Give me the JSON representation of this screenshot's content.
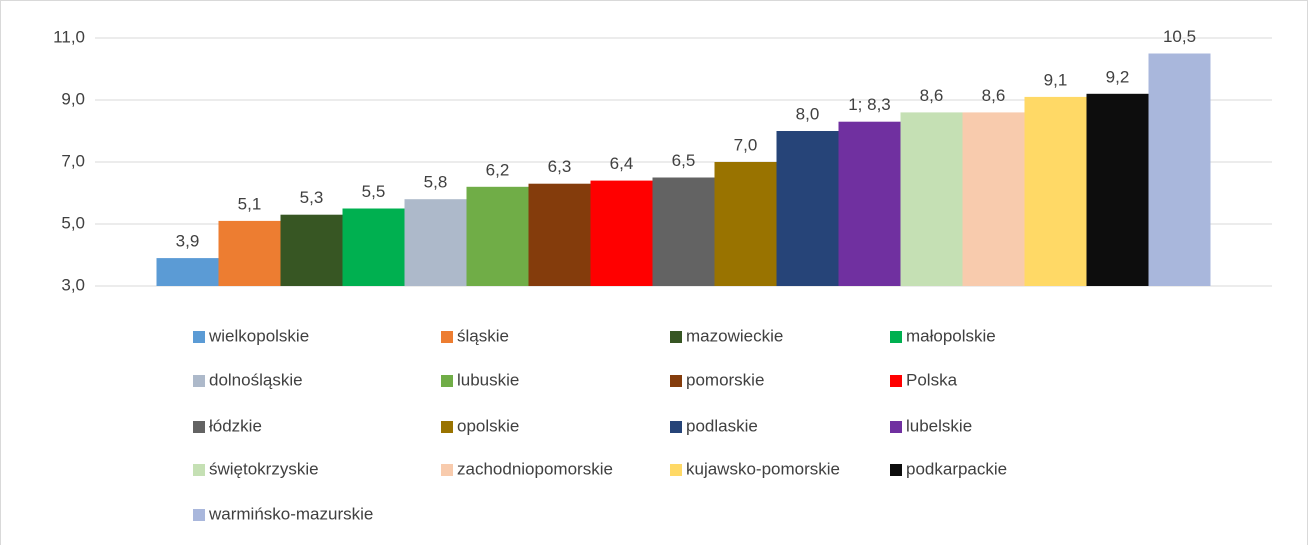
{
  "chart_data": {
    "type": "bar",
    "ylim": [
      3,
      11
    ],
    "yticks": [
      {
        "value": 3,
        "label": "3,0"
      },
      {
        "value": 5,
        "label": "5,0"
      },
      {
        "value": 7,
        "label": "7,0"
      },
      {
        "value": 9,
        "label": "9,0"
      },
      {
        "value": 11,
        "label": "11,0"
      }
    ],
    "grid": true,
    "legend": "bottom",
    "series": [
      {
        "name": "wielkopolskie",
        "color": "#5b9bd5",
        "values": [
          3.9
        ],
        "value_labels": [
          "3,9"
        ]
      },
      {
        "name": "śląskie",
        "color": "#ed7d31",
        "values": [
          5.1
        ],
        "value_labels": [
          "5,1"
        ]
      },
      {
        "name": "mazowieckie",
        "color": "#375623",
        "values": [
          5.3
        ],
        "value_labels": [
          "5,3"
        ]
      },
      {
        "name": "małopolskie",
        "color": "#00b050",
        "values": [
          5.5
        ],
        "value_labels": [
          "5,5"
        ]
      },
      {
        "name": "dolnośląskie",
        "color": "#adb9ca",
        "values": [
          5.8
        ],
        "value_labels": [
          "5,8"
        ]
      },
      {
        "name": "lubuskie",
        "color": "#70ad47",
        "values": [
          6.2
        ],
        "value_labels": [
          "6,2"
        ]
      },
      {
        "name": "pomorskie",
        "color": "#843c0c",
        "values": [
          6.3
        ],
        "value_labels": [
          "6,3"
        ]
      },
      {
        "name": "Polska",
        "color": "#ff0000",
        "values": [
          6.4
        ],
        "value_labels": [
          "6,4"
        ]
      },
      {
        "name": "łódzkie",
        "color": "#636363",
        "values": [
          6.5
        ],
        "value_labels": [
          "6,5"
        ]
      },
      {
        "name": "opolskie",
        "color": "#997300",
        "values": [
          7.0
        ],
        "value_labels": [
          "7,0"
        ]
      },
      {
        "name": "podlaskie",
        "color": "#264478",
        "values": [
          8.0
        ],
        "value_labels": [
          "8,0"
        ]
      },
      {
        "name": "lubelskie",
        "color": "#7030a0",
        "values": [
          8.3
        ],
        "value_labels": [
          "1; 8,3"
        ]
      },
      {
        "name": "świętokrzyskie",
        "color": "#c5e0b4",
        "values": [
          8.6
        ],
        "value_labels": [
          "8,6"
        ]
      },
      {
        "name": "zachodniopomorskie",
        "color": "#f8cbad",
        "values": [
          8.6
        ],
        "value_labels": [
          "8,6"
        ]
      },
      {
        "name": "kujawsko-pomorskie",
        "color": "#ffd966",
        "values": [
          9.1
        ],
        "value_labels": [
          "9,1"
        ]
      },
      {
        "name": "podkarpackie",
        "color": "#0d0d0d",
        "values": [
          9.2
        ],
        "value_labels": [
          "9,2"
        ]
      },
      {
        "name": "warmińsko-mazurskie",
        "color": "#a9b7dc",
        "values": [
          10.5
        ],
        "value_labels": [
          "10,5"
        ]
      }
    ]
  }
}
